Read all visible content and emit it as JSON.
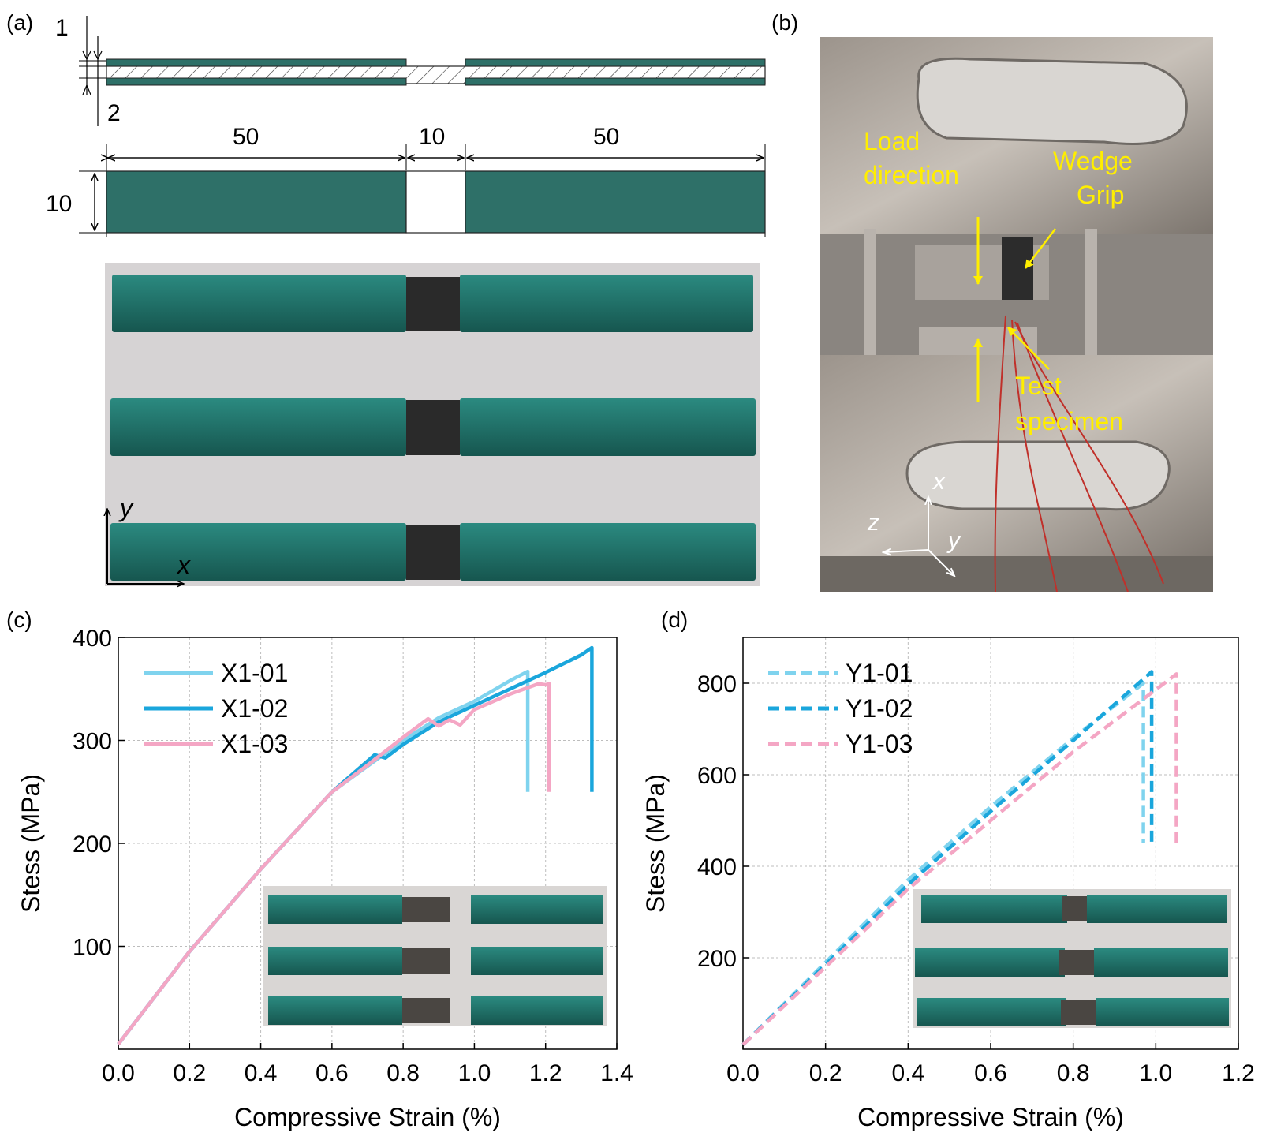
{
  "panels": {
    "a": {
      "label": "(a)",
      "dim_top_thickness": "1",
      "dim_bottom_thickness": "2",
      "dim_left_length": "50",
      "dim_gap_length": "10",
      "dim_right_length": "50",
      "dim_width": "10",
      "axis_y": "y",
      "axis_x": "x"
    },
    "b": {
      "label": "(b)",
      "load_direction_line1": "Load",
      "load_direction_line2": "direction",
      "wedge_grip_line1": "Wedge",
      "wedge_grip_line2": "Grip",
      "test_specimen_line1": "Test",
      "test_specimen_line2": "specimen",
      "axis_x": "x",
      "axis_y": "y",
      "axis_z": "z"
    },
    "c": {
      "label": "(c)"
    },
    "d": {
      "label": "(d)"
    }
  },
  "colors": {
    "composite_teal": "#2e7068",
    "specimen_teal": "#1f6f67",
    "light_blue": "#7fd3ee",
    "blue": "#1aa6dc",
    "pink": "#f4a6c4",
    "annotation_yellow": "#ffee00"
  },
  "chart_data": [
    {
      "type": "line",
      "xlabel": "Compressive Strain (%)",
      "ylabel": "Stess (MPa)",
      "xlim": [
        0.0,
        1.4
      ],
      "ylim": [
        0,
        400
      ],
      "x_ticks": [
        "0.0",
        "0.2",
        "0.4",
        "0.6",
        "0.8",
        "1.0",
        "1.2",
        "1.4"
      ],
      "y_ticks": [
        "100",
        "200",
        "300",
        "400"
      ],
      "grid": true,
      "legend_position": "top-left",
      "series": [
        {
          "name": "X1-01",
          "style": "solid",
          "color": "#7fd3ee",
          "points": [
            [
              0,
              5
            ],
            [
              0.2,
              95
            ],
            [
              0.4,
              175
            ],
            [
              0.6,
              250
            ],
            [
              0.7,
              275
            ],
            [
              0.8,
              300
            ],
            [
              0.9,
              322
            ],
            [
              1.0,
              338
            ],
            [
              1.1,
              358
            ],
            [
              1.15,
              367
            ],
            [
              1.15,
              250
            ]
          ]
        },
        {
          "name": "X1-02",
          "style": "solid",
          "color": "#1aa6dc",
          "points": [
            [
              0,
              5
            ],
            [
              0.2,
              95
            ],
            [
              0.4,
              175
            ],
            [
              0.6,
              250
            ],
            [
              0.72,
              286
            ],
            [
              0.75,
              283
            ],
            [
              0.8,
              296
            ],
            [
              0.9,
              318
            ],
            [
              1.0,
              334
            ],
            [
              1.1,
              350
            ],
            [
              1.2,
              366
            ],
            [
              1.3,
              383
            ],
            [
              1.33,
              390
            ],
            [
              1.33,
              250
            ]
          ]
        },
        {
          "name": "X1-03",
          "style": "solid",
          "color": "#f4a6c4",
          "points": [
            [
              0,
              5
            ],
            [
              0.2,
              95
            ],
            [
              0.4,
              175
            ],
            [
              0.6,
              250
            ],
            [
              0.7,
              276
            ],
            [
              0.8,
              303
            ],
            [
              0.87,
              321
            ],
            [
              0.9,
              314
            ],
            [
              0.93,
              320
            ],
            [
              0.96,
              315
            ],
            [
              1.0,
              330
            ],
            [
              1.1,
              345
            ],
            [
              1.18,
              355
            ],
            [
              1.2,
              354
            ],
            [
              1.21,
              355
            ],
            [
              1.21,
              250
            ]
          ]
        }
      ]
    },
    {
      "type": "line",
      "xlabel": "Compressive Strain (%)",
      "ylabel": "Stess (MPa)",
      "xlim": [
        0.0,
        1.2
      ],
      "ylim": [
        0,
        900
      ],
      "x_ticks": [
        "0.0",
        "0.2",
        "0.4",
        "0.6",
        "0.8",
        "1.0",
        "1.2"
      ],
      "y_ticks": [
        "200",
        "400",
        "600",
        "800"
      ],
      "grid": true,
      "legend_position": "top-left",
      "series": [
        {
          "name": "Y1-01",
          "style": "dashed",
          "color": "#7fd3ee",
          "points": [
            [
              0,
              10
            ],
            [
              0.2,
              190
            ],
            [
              0.4,
              370
            ],
            [
              0.6,
              530
            ],
            [
              0.8,
              680
            ],
            [
              0.97,
              800
            ],
            [
              0.97,
              450
            ]
          ]
        },
        {
          "name": "Y1-02",
          "style": "dashed",
          "color": "#1aa6dc",
          "points": [
            [
              0,
              10
            ],
            [
              0.2,
              185
            ],
            [
              0.4,
              360
            ],
            [
              0.6,
              520
            ],
            [
              0.8,
              675
            ],
            [
              0.99,
              825
            ],
            [
              0.99,
              450
            ]
          ]
        },
        {
          "name": "Y1-03",
          "style": "dashed",
          "color": "#f4a6c4",
          "points": [
            [
              0,
              10
            ],
            [
              0.2,
              180
            ],
            [
              0.4,
              350
            ],
            [
              0.6,
              500
            ],
            [
              0.8,
              650
            ],
            [
              1.05,
              820
            ],
            [
              1.05,
              450
            ]
          ]
        }
      ]
    }
  ]
}
